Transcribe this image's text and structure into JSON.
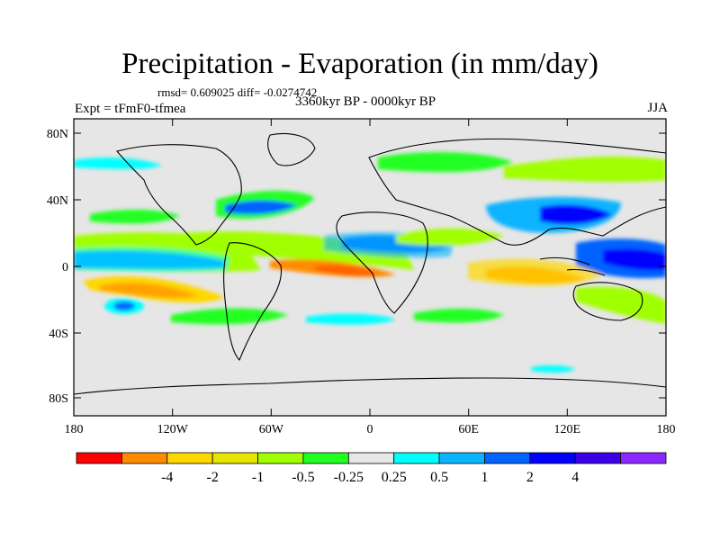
{
  "header": {
    "title": "Precipitation - Evaporation (in mm/day)",
    "stats": "rmsd= 0.609025 diff= -0.0274742",
    "period": "3360kyr BP - 0000kyr BP",
    "experiment": "Expt = tFmF0-tfmea",
    "season": "JJA"
  },
  "axes": {
    "lat_ticks": [
      "80N",
      "40N",
      "0",
      "40S",
      "80S"
    ],
    "lon_ticks": [
      "180",
      "120W",
      "60W",
      "0",
      "60E",
      "120E",
      "180"
    ]
  },
  "colorbar": {
    "colors": [
      "#ff0000",
      "#ff8c00",
      "#ffd700",
      "#e6e600",
      "#a0ff00",
      "#21ff21",
      "#e6e6e6",
      "#00ffff",
      "#0ab4ff",
      "#0064ff",
      "#0000ff",
      "#3c00e6",
      "#8c28ff"
    ],
    "labels": [
      "-4",
      "-2",
      "-1",
      "-0.5",
      "-0.25",
      "0.25",
      "0.5",
      "1",
      "2",
      "4"
    ]
  },
  "map_colors": {
    "land_bg": "#e6e6e6",
    "coastline": "#000000"
  }
}
